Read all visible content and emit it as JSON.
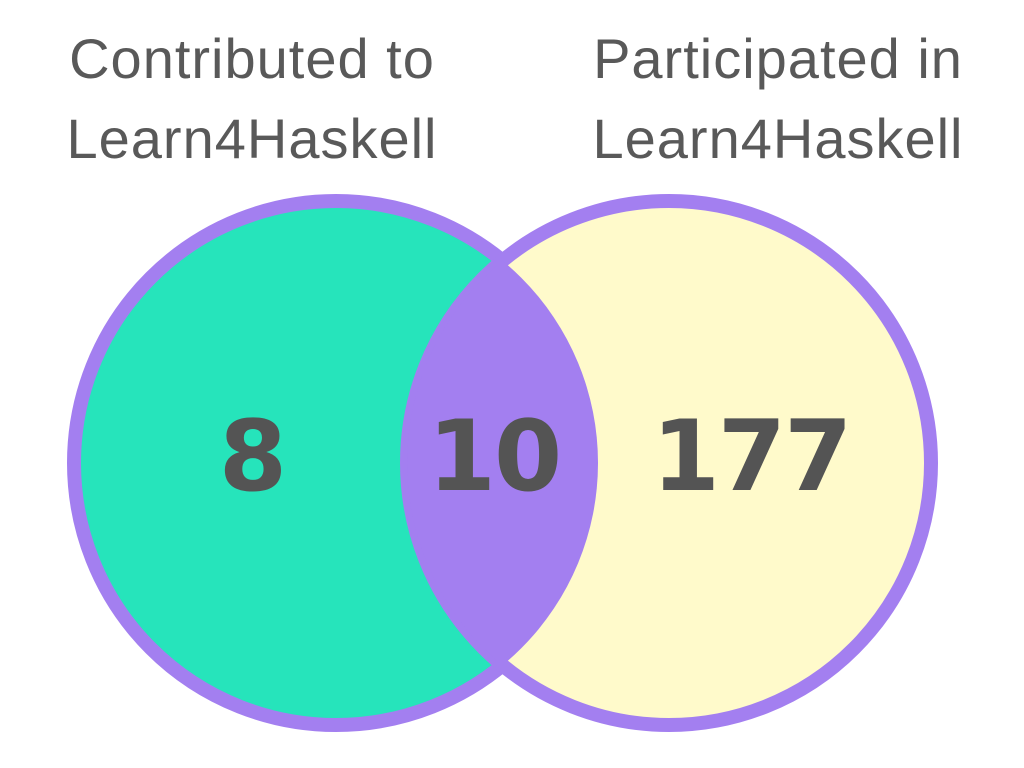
{
  "sets": {
    "left": {
      "title_line1": "Contributed to",
      "title_line2": "Learn4Haskell"
    },
    "right": {
      "title_line1": "Participated in",
      "title_line2": "Learn4Haskell"
    }
  },
  "regions": {
    "left_only": "8",
    "overlap": "10",
    "right_only": "177"
  },
  "colors": {
    "left_fill": "#26e4bb",
    "right_fill": "#fffacb",
    "overlap_fill": "#a37ff0",
    "outline": "#a37ff0",
    "text": "#545454"
  }
}
